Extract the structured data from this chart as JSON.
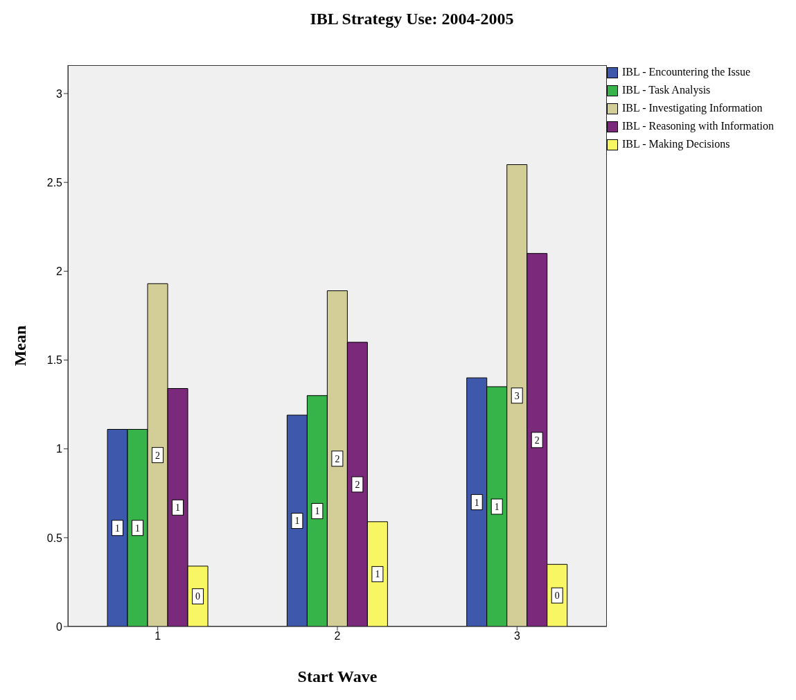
{
  "chart_data": {
    "type": "bar",
    "title": "IBL Strategy Use: 2004-2005",
    "xlabel": "Start Wave",
    "ylabel": "Mean",
    "categories": [
      "1",
      "2",
      "3"
    ],
    "series": [
      {
        "name": "IBL - Encountering the Issue",
        "color": "#3e58ac",
        "values": [
          1.11,
          1.19,
          1.4
        ],
        "value_labels": [
          "1",
          "1",
          "1"
        ]
      },
      {
        "name": "IBL - Task Analysis",
        "color": "#36b44a",
        "values": [
          1.11,
          1.3,
          1.35
        ],
        "value_labels": [
          "1",
          "1",
          "1"
        ]
      },
      {
        "name": "IBL - Investigating Information",
        "color": "#d3ce97",
        "values": [
          1.93,
          1.89,
          2.6
        ],
        "value_labels": [
          "2",
          "2",
          "3"
        ]
      },
      {
        "name": "IBL - Reasoning with Information",
        "color": "#7b2a7b",
        "values": [
          1.34,
          1.6,
          2.1
        ],
        "value_labels": [
          "1",
          "2",
          "2"
        ]
      },
      {
        "name": "IBL - Making Decisions",
        "color": "#f9f663",
        "values": [
          0.34,
          0.59,
          0.35
        ],
        "value_labels": [
          "0",
          "1",
          "0"
        ]
      }
    ],
    "ylim": [
      0,
      3.16
    ],
    "yticks": [
      0,
      0.5,
      1,
      1.5,
      2,
      2.5,
      3
    ],
    "grid": false,
    "legend": "top right"
  }
}
